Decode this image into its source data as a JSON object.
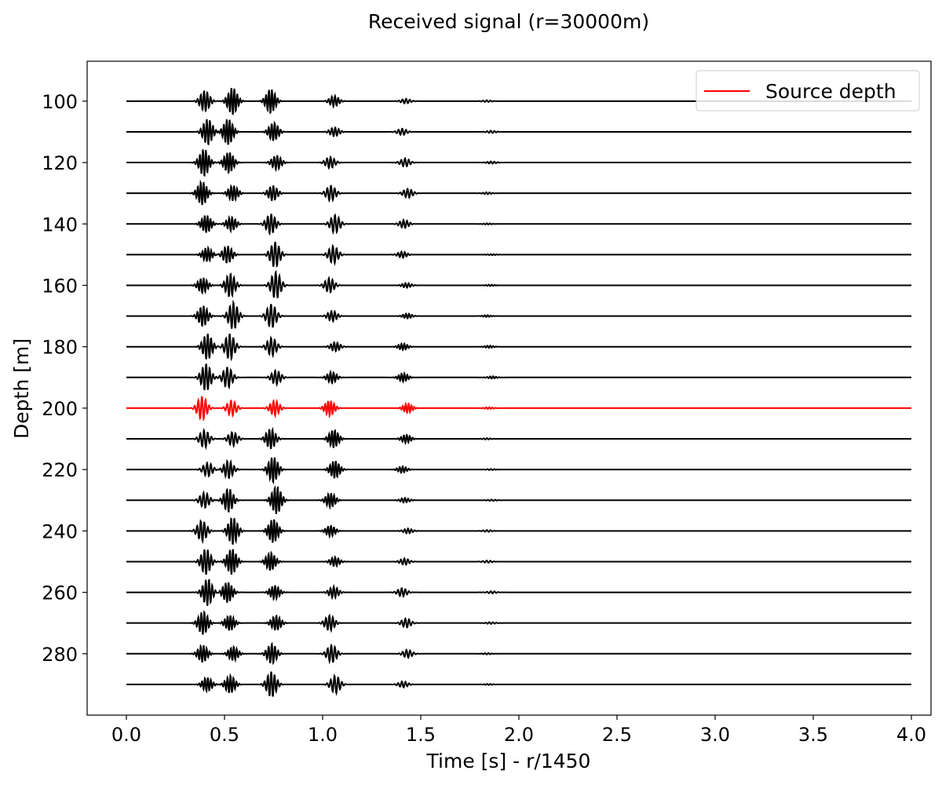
{
  "chart_data": {
    "type": "line",
    "title": "Received signal (r=30000m)",
    "xlabel": "Time [s] - r/1450",
    "ylabel": "Depth [m]",
    "xlim": [
      -0.2,
      4.1
    ],
    "ylim": [
      300,
      87
    ],
    "y_inverted": true,
    "grid": false,
    "x_ticks": [
      "0.0",
      "0.5",
      "1.0",
      "1.5",
      "2.0",
      "2.5",
      "3.0",
      "3.5",
      "4.0"
    ],
    "x_tick_values": [
      0.0,
      0.5,
      1.0,
      1.5,
      2.0,
      2.5,
      3.0,
      3.5,
      4.0
    ],
    "y_ticks": [
      "100",
      "120",
      "140",
      "160",
      "180",
      "200",
      "220",
      "240",
      "260",
      "280"
    ],
    "y_tick_values": [
      100,
      120,
      140,
      160,
      180,
      200,
      220,
      240,
      260,
      280
    ],
    "trace_time_range": [
      0.0,
      4.0
    ],
    "trace_depths": [
      100,
      110,
      120,
      130,
      140,
      150,
      160,
      170,
      180,
      190,
      200,
      210,
      220,
      230,
      240,
      250,
      260,
      270,
      280,
      290
    ],
    "source_depth": 200,
    "arrival_times": [
      0.4,
      0.53,
      0.75,
      1.05,
      1.42,
      1.85
    ],
    "arrival_peak_amplitudes_m": [
      4.5,
      4.5,
      4.5,
      3.0,
      1.5,
      0.4
    ],
    "trace_color": "#000000",
    "source_color": "#ff0000",
    "legend": {
      "position": "upper right",
      "entries": [
        {
          "label": "Source depth",
          "color": "#ff0000"
        }
      ]
    }
  }
}
